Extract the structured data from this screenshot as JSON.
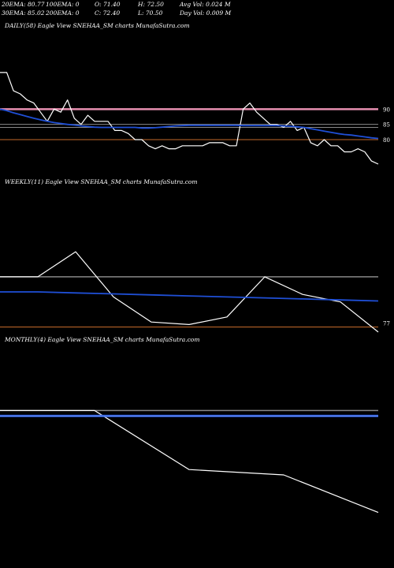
{
  "header": {
    "ema20": "20EMA: 80.77",
    "ema100": "100EMA: 0",
    "open": "O: 71.40",
    "high": "H: 72.50",
    "avgvol": "Avg Vol: 0.024  M",
    "ema30": "30EMA: 85.02",
    "ema200": "200EMA: 0",
    "close": "C: 72.40",
    "low": "L: 70.50",
    "dayvol": "Day Vol: 0.009 M"
  },
  "panels": {
    "daily_title": "DAILY(58) Eagle   View  SNEHAA_SM charts MunafaSutra.com",
    "weekly_title": "WEEKLY(11) Eagle   View  SNEHAA_SM charts MunafaSutra.com",
    "monthly_title": "MONTHLY(4) Eagle   View  SNEHAA_SM charts MunafaSutra.com"
  },
  "colors": {
    "price": "#ffffff",
    "ema_blue": "#1f4fd6",
    "ref_pink": "#e68fb0",
    "ref_grey": "#888888",
    "ref_orange": "#c46a2a"
  },
  "chart_data": [
    {
      "type": "line",
      "name": "daily",
      "ylim": [
        72,
        103
      ],
      "y_tick_labels": [
        "90",
        "85",
        "80"
      ],
      "y_ticks": [
        90,
        85,
        80
      ],
      "series": [
        {
          "role": "price",
          "values": [
            102,
            102,
            96,
            95,
            93,
            92,
            89,
            86,
            90,
            89,
            93,
            87,
            85,
            88,
            86,
            86,
            86,
            83,
            83,
            82,
            80,
            80,
            78,
            77,
            78,
            77,
            77,
            78,
            78,
            78,
            78,
            79,
            79,
            79,
            78,
            78,
            90,
            92,
            89,
            87,
            85,
            85,
            84,
            86,
            83,
            84,
            79,
            78,
            80,
            78,
            78,
            76,
            76,
            77,
            76,
            73,
            72
          ]
        },
        {
          "role": "ema",
          "values": [
            90,
            89.5,
            88.8,
            88.2,
            87.6,
            87,
            86.5,
            86,
            85.6,
            85.3,
            85,
            84.8,
            84.5,
            84.3,
            84.1,
            84,
            84,
            84,
            84,
            84,
            84,
            83.8,
            83.8,
            83.9,
            84.1,
            84.3,
            84.5,
            84.6,
            84.7,
            84.7,
            84.7,
            84.7,
            84.7,
            84.7,
            84.7,
            84.7,
            84.6,
            84.6,
            84.6,
            84.6,
            84.6,
            84.6,
            84.5,
            84.4,
            84.2,
            84,
            83.6,
            83.2,
            82.8,
            82.4,
            82,
            81.7,
            81.5,
            81.2,
            80.9,
            80.6,
            80.4
          ]
        }
      ],
      "reference_lines": [
        90,
        85,
        84,
        80
      ]
    },
    {
      "type": "line",
      "name": "weekly",
      "ylim": [
        73,
        95
      ],
      "y_tick_labels": [
        "77"
      ],
      "y_ticks": [
        77
      ],
      "series": [
        {
          "role": "price",
          "values": [
            87,
            87,
            92,
            83,
            78,
            77.5,
            79,
            87,
            83.5,
            82,
            76
          ]
        },
        {
          "role": "ema",
          "values": [
            84,
            84,
            83.8,
            83.6,
            83.4,
            83.2,
            83,
            82.8,
            82.6,
            82.4,
            82.2
          ]
        }
      ],
      "reference_lines": [
        87,
        77
      ]
    },
    {
      "type": "line",
      "name": "monthly",
      "ylim": [
        70,
        95
      ],
      "series": [
        {
          "role": "price",
          "values": [
            92,
            92,
            81,
            80,
            73
          ]
        },
        {
          "role": "ema",
          "values": [
            91,
            91,
            91,
            91,
            91
          ]
        }
      ],
      "reference_lines": [
        92
      ]
    }
  ]
}
